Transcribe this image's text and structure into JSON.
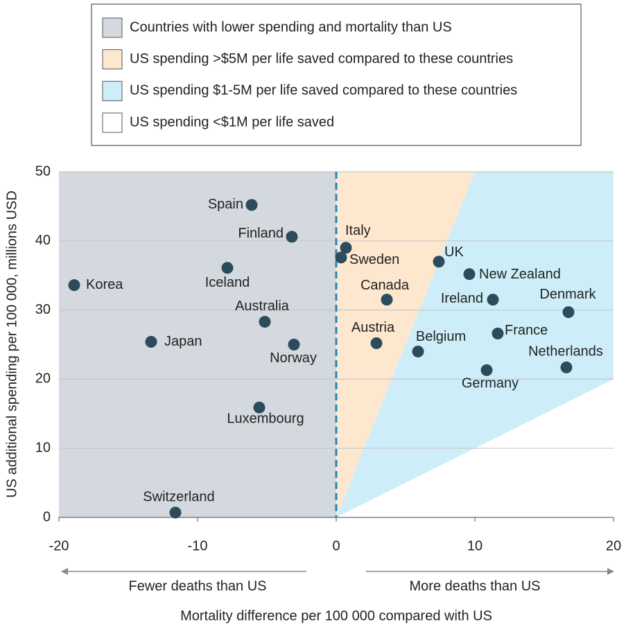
{
  "chart_data": {
    "type": "scatter",
    "x_label": "Mortality difference per 100 000 compared with US",
    "y_label": "US additional spending per 100 000, millions USD",
    "annotations": [
      "Fewer deaths than US",
      "More deaths than US"
    ],
    "legend": [
      {
        "label": "Countries with lower spending and mortality than US",
        "color": "#d3d9de"
      },
      {
        "label": "US spending >$5M per life saved compared to these countries",
        "color": "#fde7cf",
        "slope": 5
      },
      {
        "label": "US spending $1-5M per life saved compared to these countries",
        "color": "#cdeef9",
        "slope": 1
      },
      {
        "label": "US spending <$1M per life saved",
        "color": "#ffffff"
      }
    ],
    "labels": [
      "Korea",
      "Japan",
      "Spain",
      "Finland",
      "Iceland",
      "Australia",
      "Norway",
      "Luxembourg",
      "Switzerland",
      "Italy",
      "Sweden",
      "Canada",
      "Austria",
      "UK",
      "New Zealand",
      "Ireland",
      "Denmark",
      "France",
      "Belgium",
      "Germany",
      "Netherlands"
    ],
    "x": [
      -18.9,
      -13.35,
      -6.1,
      -3.2,
      -7.85,
      -5.15,
      -3.05,
      -5.55,
      -11.6,
      0.7,
      0.35,
      3.65,
      2.9,
      7.4,
      9.6,
      11.3,
      16.75,
      11.65,
      5.9,
      10.85,
      16.6
    ],
    "values": [
      33.6,
      25.4,
      45.2,
      40.6,
      36.1,
      28.3,
      25.0,
      15.9,
      0.7,
      39.0,
      37.6,
      31.5,
      25.2,
      37.0,
      35.2,
      31.5,
      29.7,
      26.6,
      24.0,
      21.3,
      21.7
    ],
    "color": "#2c4b5c",
    "xlim": [
      -20,
      20
    ],
    "xticks": [
      -20,
      -10,
      0,
      10,
      20
    ],
    "ylim": [
      0,
      50
    ],
    "yticks": [
      0,
      10,
      20,
      30,
      40,
      50
    ],
    "grid": true
  }
}
